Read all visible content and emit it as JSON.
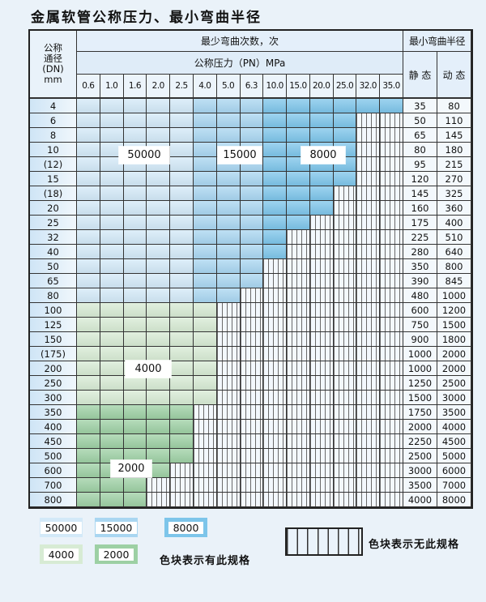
{
  "title": "金属软管公称压力、最小弯曲半径",
  "colors": {
    "cycles_50000": "#d3e9f8",
    "cycles_15000": "#a9d6f1",
    "cycles_8000": "#7dc5ea",
    "cycles_4000": "#d7ebd4",
    "cycles_2000": "#9dd0a4",
    "hatch_bg": "#f3f8fd",
    "hatch_line": "#6a6a6a",
    "page_bg": "#eaf2f9",
    "table_border": "#222222"
  },
  "table": {
    "header": {
      "dn_lines": [
        "公称",
        "通径",
        "(DN)",
        "mm"
      ],
      "cycles_title": "最少弯曲次数，次",
      "pressure_title": "公称压力（PN）MPa",
      "radius_title": "最小弯曲半径",
      "static_label": "静 态",
      "dynamic_label": "动 态",
      "pressures": [
        "0.6",
        "1.0",
        "1.6",
        "2.0",
        "2.5",
        "4.0",
        "5.0",
        "6.3",
        "10.0",
        "15.0",
        "20.0",
        "25.0",
        "32.0",
        "35.0"
      ]
    },
    "zone_of_column": [
      "50000",
      "50000",
      "50000",
      "50000",
      "50000",
      "15000",
      "15000",
      "15000",
      "8000",
      "8000",
      "8000",
      "8000",
      "8000",
      "8000"
    ],
    "zone_labels": [
      "50000",
      "15000",
      "8000",
      "4000",
      "2000"
    ],
    "rows": [
      {
        "dn": "4",
        "zone": "blue",
        "colored_columns": 14,
        "static": "35",
        "dynamic": "80"
      },
      {
        "dn": "6",
        "zone": "blue",
        "colored_columns": 12,
        "static": "50",
        "dynamic": "110"
      },
      {
        "dn": "8",
        "zone": "blue",
        "colored_columns": 12,
        "static": "65",
        "dynamic": "145"
      },
      {
        "dn": "10",
        "zone": "blue",
        "colored_columns": 12,
        "static": "80",
        "dynamic": "180"
      },
      {
        "dn": "(12)",
        "zone": "blue",
        "colored_columns": 12,
        "static": "95",
        "dynamic": "215"
      },
      {
        "dn": "15",
        "zone": "blue",
        "colored_columns": 12,
        "static": "120",
        "dynamic": "270"
      },
      {
        "dn": "(18)",
        "zone": "blue",
        "colored_columns": 11,
        "static": "145",
        "dynamic": "325"
      },
      {
        "dn": "20",
        "zone": "blue",
        "colored_columns": 11,
        "static": "160",
        "dynamic": "360"
      },
      {
        "dn": "25",
        "zone": "blue",
        "colored_columns": 10,
        "static": "175",
        "dynamic": "400"
      },
      {
        "dn": "32",
        "zone": "blue",
        "colored_columns": 9,
        "static": "225",
        "dynamic": "510"
      },
      {
        "dn": "40",
        "zone": "blue",
        "colored_columns": 9,
        "static": "280",
        "dynamic": "640"
      },
      {
        "dn": "50",
        "zone": "blue",
        "colored_columns": 8,
        "static": "350",
        "dynamic": "800"
      },
      {
        "dn": "65",
        "zone": "blue",
        "colored_columns": 8,
        "static": "390",
        "dynamic": "845"
      },
      {
        "dn": "80",
        "zone": "blue",
        "colored_columns": 7,
        "static": "480",
        "dynamic": "1000"
      },
      {
        "dn": "100",
        "zone": "4000",
        "colored_columns": 6,
        "static": "600",
        "dynamic": "1200"
      },
      {
        "dn": "125",
        "zone": "4000",
        "colored_columns": 6,
        "static": "750",
        "dynamic": "1500"
      },
      {
        "dn": "150",
        "zone": "4000",
        "colored_columns": 6,
        "static": "900",
        "dynamic": "1800"
      },
      {
        "dn": "(175)",
        "zone": "4000",
        "colored_columns": 6,
        "static": "1000",
        "dynamic": "2000"
      },
      {
        "dn": "200",
        "zone": "4000",
        "colored_columns": 6,
        "static": "1000",
        "dynamic": "2000"
      },
      {
        "dn": "250",
        "zone": "4000",
        "colored_columns": 6,
        "static": "1250",
        "dynamic": "2500"
      },
      {
        "dn": "300",
        "zone": "4000",
        "colored_columns": 6,
        "static": "1500",
        "dynamic": "3000"
      },
      {
        "dn": "350",
        "zone": "2000",
        "colored_columns": 5,
        "static": "1750",
        "dynamic": "3500"
      },
      {
        "dn": "400",
        "zone": "2000",
        "colored_columns": 5,
        "static": "2000",
        "dynamic": "4000"
      },
      {
        "dn": "450",
        "zone": "2000",
        "colored_columns": 5,
        "static": "2250",
        "dynamic": "4500"
      },
      {
        "dn": "500",
        "zone": "2000",
        "colored_columns": 5,
        "static": "2500",
        "dynamic": "5000"
      },
      {
        "dn": "600",
        "zone": "2000",
        "colored_columns": 4,
        "static": "3000",
        "dynamic": "6000"
      },
      {
        "dn": "700",
        "zone": "2000",
        "colored_columns": 3,
        "static": "3500",
        "dynamic": "7000"
      },
      {
        "dn": "800",
        "zone": "2000",
        "colored_columns": 3,
        "static": "4000",
        "dynamic": "8000"
      }
    ]
  },
  "legend": {
    "available": [
      "50000",
      "15000",
      "8000",
      "4000",
      "2000"
    ],
    "available_note": "色块表示有此规格",
    "unavailable_note": "色块表示无此规格"
  }
}
